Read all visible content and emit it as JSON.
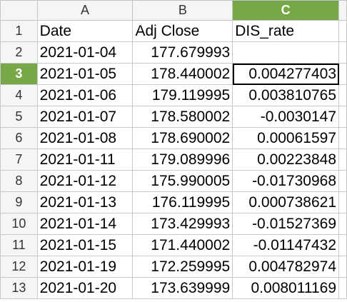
{
  "columns": [
    {
      "letter": "A",
      "active": false
    },
    {
      "letter": "B",
      "active": false
    },
    {
      "letter": "C",
      "active": true
    }
  ],
  "rows": [
    {
      "num": "1",
      "cells": [
        "Date",
        "Adj Close",
        "DIS_rate"
      ],
      "header": true
    },
    {
      "num": "2",
      "cells": [
        "2021-01-04",
        "177.679993",
        ""
      ]
    },
    {
      "num": "3",
      "cells": [
        "2021-01-05",
        "178.440002",
        "0.004277403"
      ],
      "active": true
    },
    {
      "num": "4",
      "cells": [
        "2021-01-06",
        "179.119995",
        "0.003810765"
      ]
    },
    {
      "num": "5",
      "cells": [
        "2021-01-07",
        "178.580002",
        "-0.0030147"
      ]
    },
    {
      "num": "6",
      "cells": [
        "2021-01-08",
        "178.690002",
        "0.00061597"
      ]
    },
    {
      "num": "7",
      "cells": [
        "2021-01-11",
        "179.089996",
        "0.00223848"
      ]
    },
    {
      "num": "8",
      "cells": [
        "2021-01-12",
        "175.990005",
        "-0.01730968"
      ]
    },
    {
      "num": "9",
      "cells": [
        "2021-01-13",
        "176.119995",
        "0.000738621"
      ]
    },
    {
      "num": "10",
      "cells": [
        "2021-01-14",
        "173.429993",
        "-0.01527369"
      ]
    },
    {
      "num": "11",
      "cells": [
        "2021-01-15",
        "171.440002",
        "-0.01147432"
      ]
    },
    {
      "num": "12",
      "cells": [
        "2021-01-19",
        "172.259995",
        "0.004782974"
      ]
    },
    {
      "num": "13",
      "cells": [
        "2021-01-20",
        "173.639999",
        "0.008011169"
      ]
    }
  ],
  "selection": {
    "row": 2,
    "col": 2
  },
  "colors": {
    "active_header": "#77a847",
    "header_bg": "#f5f5f5",
    "gridline": "#c8c8c8"
  }
}
